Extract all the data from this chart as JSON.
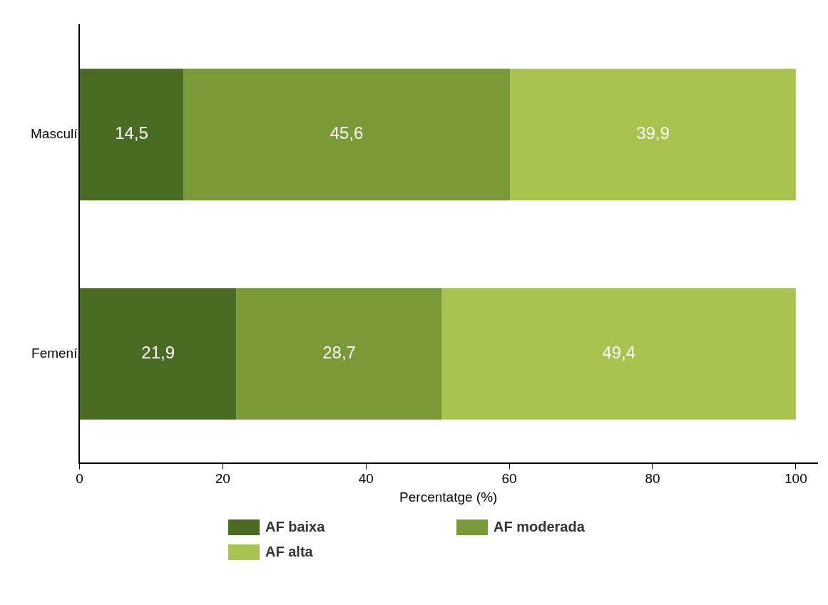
{
  "chart_data": {
    "type": "bar",
    "orientation": "horizontal",
    "stacked": true,
    "xlabel": "Percentatge (%)",
    "categories": [
      "Masculí",
      "Femení"
    ],
    "series": [
      {
        "name": "AF baixa",
        "color": "#4a6b22",
        "values": [
          14.5,
          21.9
        ],
        "value_labels": [
          "14,5",
          "21,9"
        ]
      },
      {
        "name": "AF moderada",
        "color": "#7a9a38",
        "values": [
          45.6,
          28.7
        ],
        "value_labels": [
          "45,6",
          "28,7"
        ]
      },
      {
        "name": "AF alta",
        "color": "#a8c34e",
        "values": [
          39.9,
          49.4
        ],
        "value_labels": [
          "39,9",
          "49,4"
        ]
      }
    ],
    "xlim": [
      0,
      103
    ],
    "xticks": [
      0,
      20,
      40,
      60,
      80,
      100
    ],
    "grid": false,
    "legend": "bottom"
  }
}
